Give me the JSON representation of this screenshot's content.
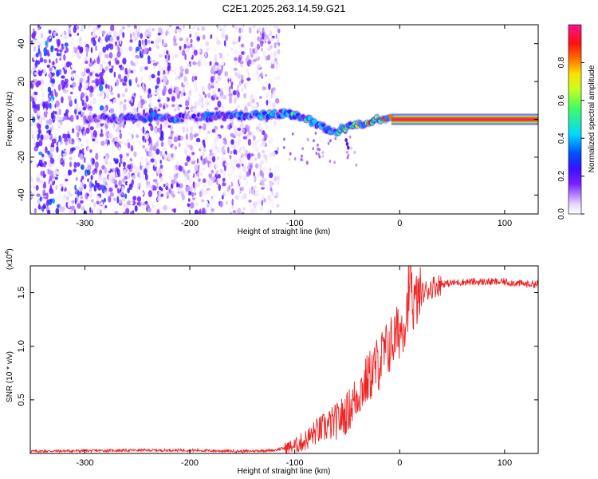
{
  "chart_data": [
    {
      "type": "heatmap",
      "title": "C2E1.2025.263.14.59.G21",
      "xlabel": "Height of straight line (km)",
      "ylabel": "Frequency (Hz)",
      "xlim": [
        -352,
        132
      ],
      "ylim": [
        -50,
        50
      ],
      "x_ticks": [
        -300,
        -200,
        -100,
        0,
        100
      ],
      "x_tick_labels": [
        "-300",
        "-200",
        "-100",
        "0",
        "100"
      ],
      "y_ticks": [
        -40,
        -20,
        0,
        20,
        40
      ],
      "y_tick_labels": [
        "-40",
        "-20",
        "0",
        "20",
        "40"
      ],
      "colorbar": {
        "label": "Normalized spectral amplitude",
        "range": [
          0,
          1
        ],
        "ticks": [
          0.0,
          0.2,
          0.4,
          0.6,
          0.8
        ],
        "tick_labels": [
          "0.0",
          "0.2",
          "0.4",
          "0.6",
          "0.8"
        ]
      },
      "ridge": {
        "x": [
          -300,
          -250,
          -210,
          -200,
          -190,
          -150,
          -110,
          -95,
          -80,
          -65,
          -50,
          -35,
          -20,
          -10,
          0,
          130
        ],
        "frequency": [
          0,
          1,
          1,
          0,
          1,
          2,
          3,
          2,
          -2,
          -7,
          -4,
          -2,
          0,
          1,
          1,
          0
        ],
        "amplitude": [
          0.22,
          0.35,
          0.38,
          0.18,
          0.35,
          0.4,
          0.5,
          0.55,
          0.5,
          0.45,
          0.7,
          0.8,
          0.9,
          0.95,
          1.0,
          1.0
        ]
      },
      "noise_region_x": [
        -352,
        -115
      ]
    },
    {
      "type": "line",
      "title": "",
      "xlabel": "Height of straight line (km)",
      "ylabel": "SNR (10 * v/v)",
      "y_exponent_label": "(x10",
      "y_exponent": "4",
      "xlim": [
        -352,
        132
      ],
      "ylim": [
        0,
        1.75
      ],
      "x_ticks": [
        -300,
        -200,
        -100,
        0,
        100
      ],
      "x_tick_labels": [
        "-300",
        "-200",
        "-100",
        "0",
        "100"
      ],
      "y_ticks": [
        0.5,
        1.0,
        1.5
      ],
      "y_tick_labels": [
        "0.5",
        "1.0",
        "1.5"
      ],
      "series": [
        {
          "name": "SNR",
          "color": "#ee2222",
          "x": [
            -352,
            -250,
            -200,
            -150,
            -120,
            -100,
            -90,
            -80,
            -70,
            -60,
            -50,
            -40,
            -30,
            -20,
            -10,
            0,
            10,
            20,
            30,
            40,
            60,
            80,
            100,
            120,
            132
          ],
          "values": [
            0.02,
            0.03,
            0.03,
            0.02,
            0.03,
            0.07,
            0.12,
            0.2,
            0.25,
            0.3,
            0.38,
            0.55,
            0.7,
            0.85,
            1.0,
            1.15,
            1.35,
            1.48,
            1.55,
            1.58,
            1.6,
            1.6,
            1.6,
            1.58,
            1.58
          ]
        }
      ]
    }
  ]
}
